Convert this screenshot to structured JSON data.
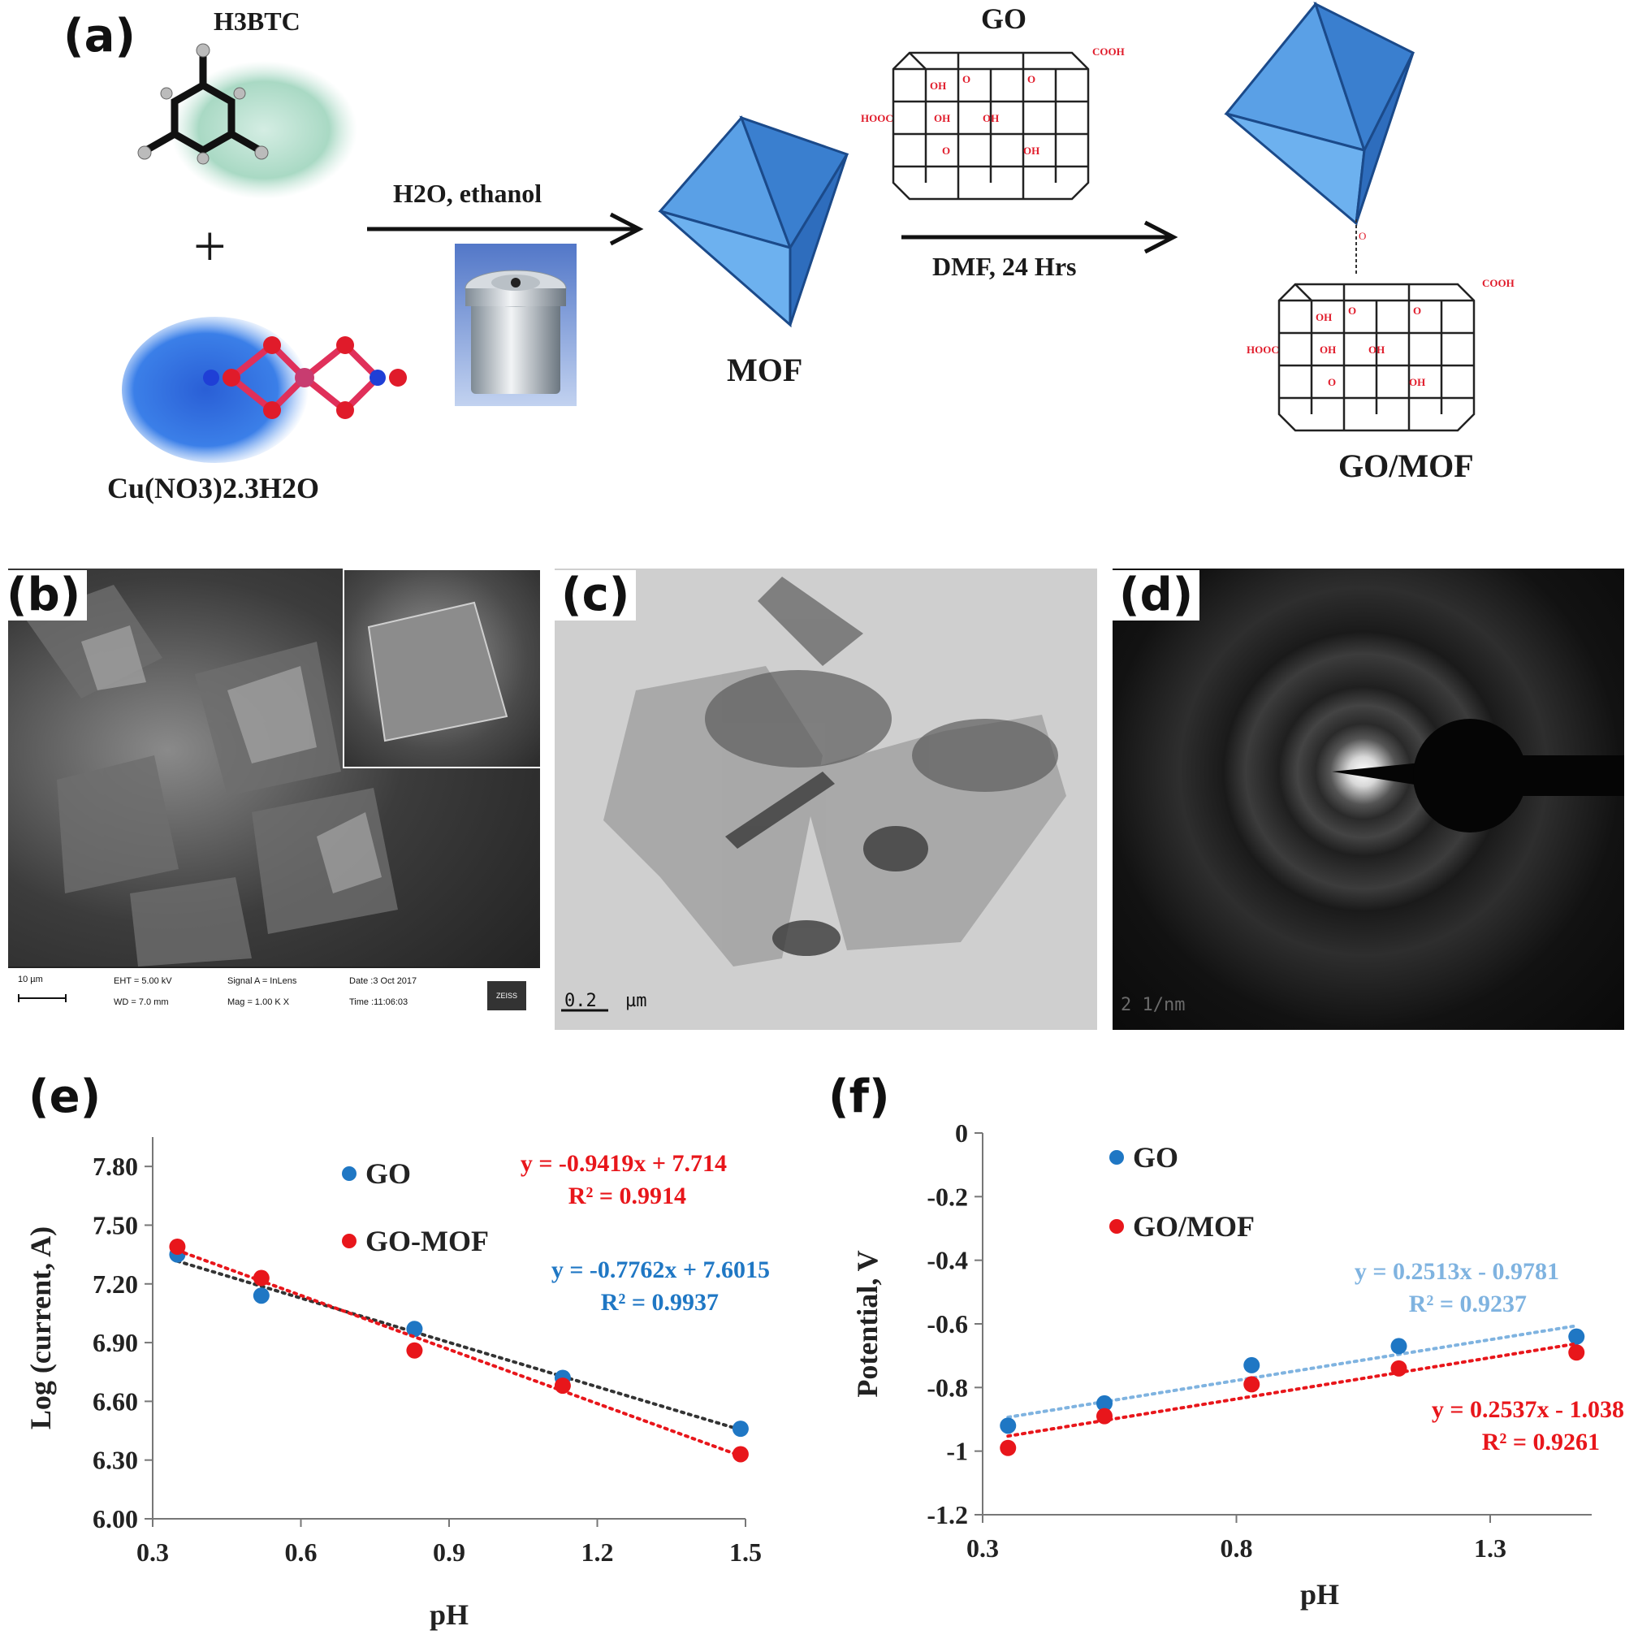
{
  "panel_a": {
    "letter": "(a)",
    "reagent1": "H3BTC",
    "reagent2": "Cu(NO3)2.3H2O",
    "plus": "+",
    "step1": "H2O, ethanol",
    "product1": "MOF",
    "reagent3": "GO",
    "step2": "DMF, 24 Hrs",
    "product2": "GO/MOF",
    "groups": {
      "oh": "OH",
      "o": "O",
      "cooh": "COOH",
      "hooc": "HOOC"
    }
  },
  "panel_b": {
    "letter": "(b)",
    "scale": "10 µm",
    "eht": "EHT = 5.00 kV",
    "wd": "WD = 7.0 mm",
    "signal": "Signal A = InLens",
    "mag": "Mag = 1.00 K X",
    "date": "Date :3 Oct 2017",
    "time": "Time :11:06:03",
    "logo": "ZEISS"
  },
  "panel_c": {
    "letter": "(c)",
    "scale_num": "0.2",
    "scale_unit": "µm"
  },
  "panel_d": {
    "letter": "(d)",
    "scale": "2 1/nm"
  },
  "chart_data": [
    {
      "panel": "(e)",
      "type": "scatter",
      "xlabel": "pH",
      "ylabel": "Log (current, A)",
      "xlim": [
        0.3,
        1.5
      ],
      "ylim": [
        6.0,
        7.95
      ],
      "xticks": [
        "0.3",
        "0.6",
        "0.9",
        "1.2",
        "1.5"
      ],
      "yticks": [
        "6.00",
        "6.30",
        "6.60",
        "6.90",
        "7.20",
        "7.50",
        "7.80"
      ],
      "legend": [
        "GO",
        "GO-MOF"
      ],
      "series": [
        {
          "name": "GO",
          "color": "#1f77c4",
          "trend_color": "#333333",
          "x": [
            0.35,
            0.52,
            0.83,
            1.13,
            1.49
          ],
          "y": [
            7.35,
            7.14,
            6.97,
            6.72,
            6.46
          ]
        },
        {
          "name": "GO-MOF",
          "color": "#e8161b",
          "trend_color": "#e8161b",
          "x": [
            0.35,
            0.52,
            0.83,
            1.13,
            1.49
          ],
          "y": [
            7.39,
            7.23,
            6.86,
            6.68,
            6.33
          ]
        }
      ],
      "annotations": [
        {
          "eq": "y = -0.9419x + 7.714",
          "r2": "R² = 0.9914",
          "color": "#e8161b"
        },
        {
          "eq": "y = -0.7762x + 7.6015",
          "r2": "R² = 0.9937",
          "color": "#1f77c4"
        }
      ]
    },
    {
      "panel": "(f)",
      "type": "scatter",
      "xlabel": "pH",
      "ylabel": "Potential, V",
      "xlim": [
        0.3,
        1.5
      ],
      "ylim": [
        -1.2,
        0
      ],
      "xticks": [
        "0.3",
        "0.8",
        "1.3"
      ],
      "yticks": [
        "0",
        "-0.2",
        "-0.4",
        "-0.6",
        "-0.8",
        "-1",
        "-1.2"
      ],
      "legend": [
        "GO",
        "GO/MOF"
      ],
      "series": [
        {
          "name": "GO",
          "color": "#1f77c4",
          "trend_color": "#7fb3e0",
          "x": [
            0.35,
            0.54,
            0.83,
            1.12,
            1.47
          ],
          "y": [
            -0.92,
            -0.85,
            -0.73,
            -0.67,
            -0.64
          ]
        },
        {
          "name": "GO/MOF",
          "color": "#e8161b",
          "trend_color": "#e8161b",
          "x": [
            0.35,
            0.54,
            0.83,
            1.12,
            1.47
          ],
          "y": [
            -0.99,
            -0.89,
            -0.79,
            -0.74,
            -0.69
          ]
        }
      ],
      "annotations": [
        {
          "eq": "y = 0.2513x - 0.9781",
          "r2": "R² = 0.9237",
          "color": "#7fb3e0"
        },
        {
          "eq": "y = 0.2537x - 1.038",
          "r2": "R² = 0.9261",
          "color": "#e8161b"
        }
      ]
    }
  ]
}
